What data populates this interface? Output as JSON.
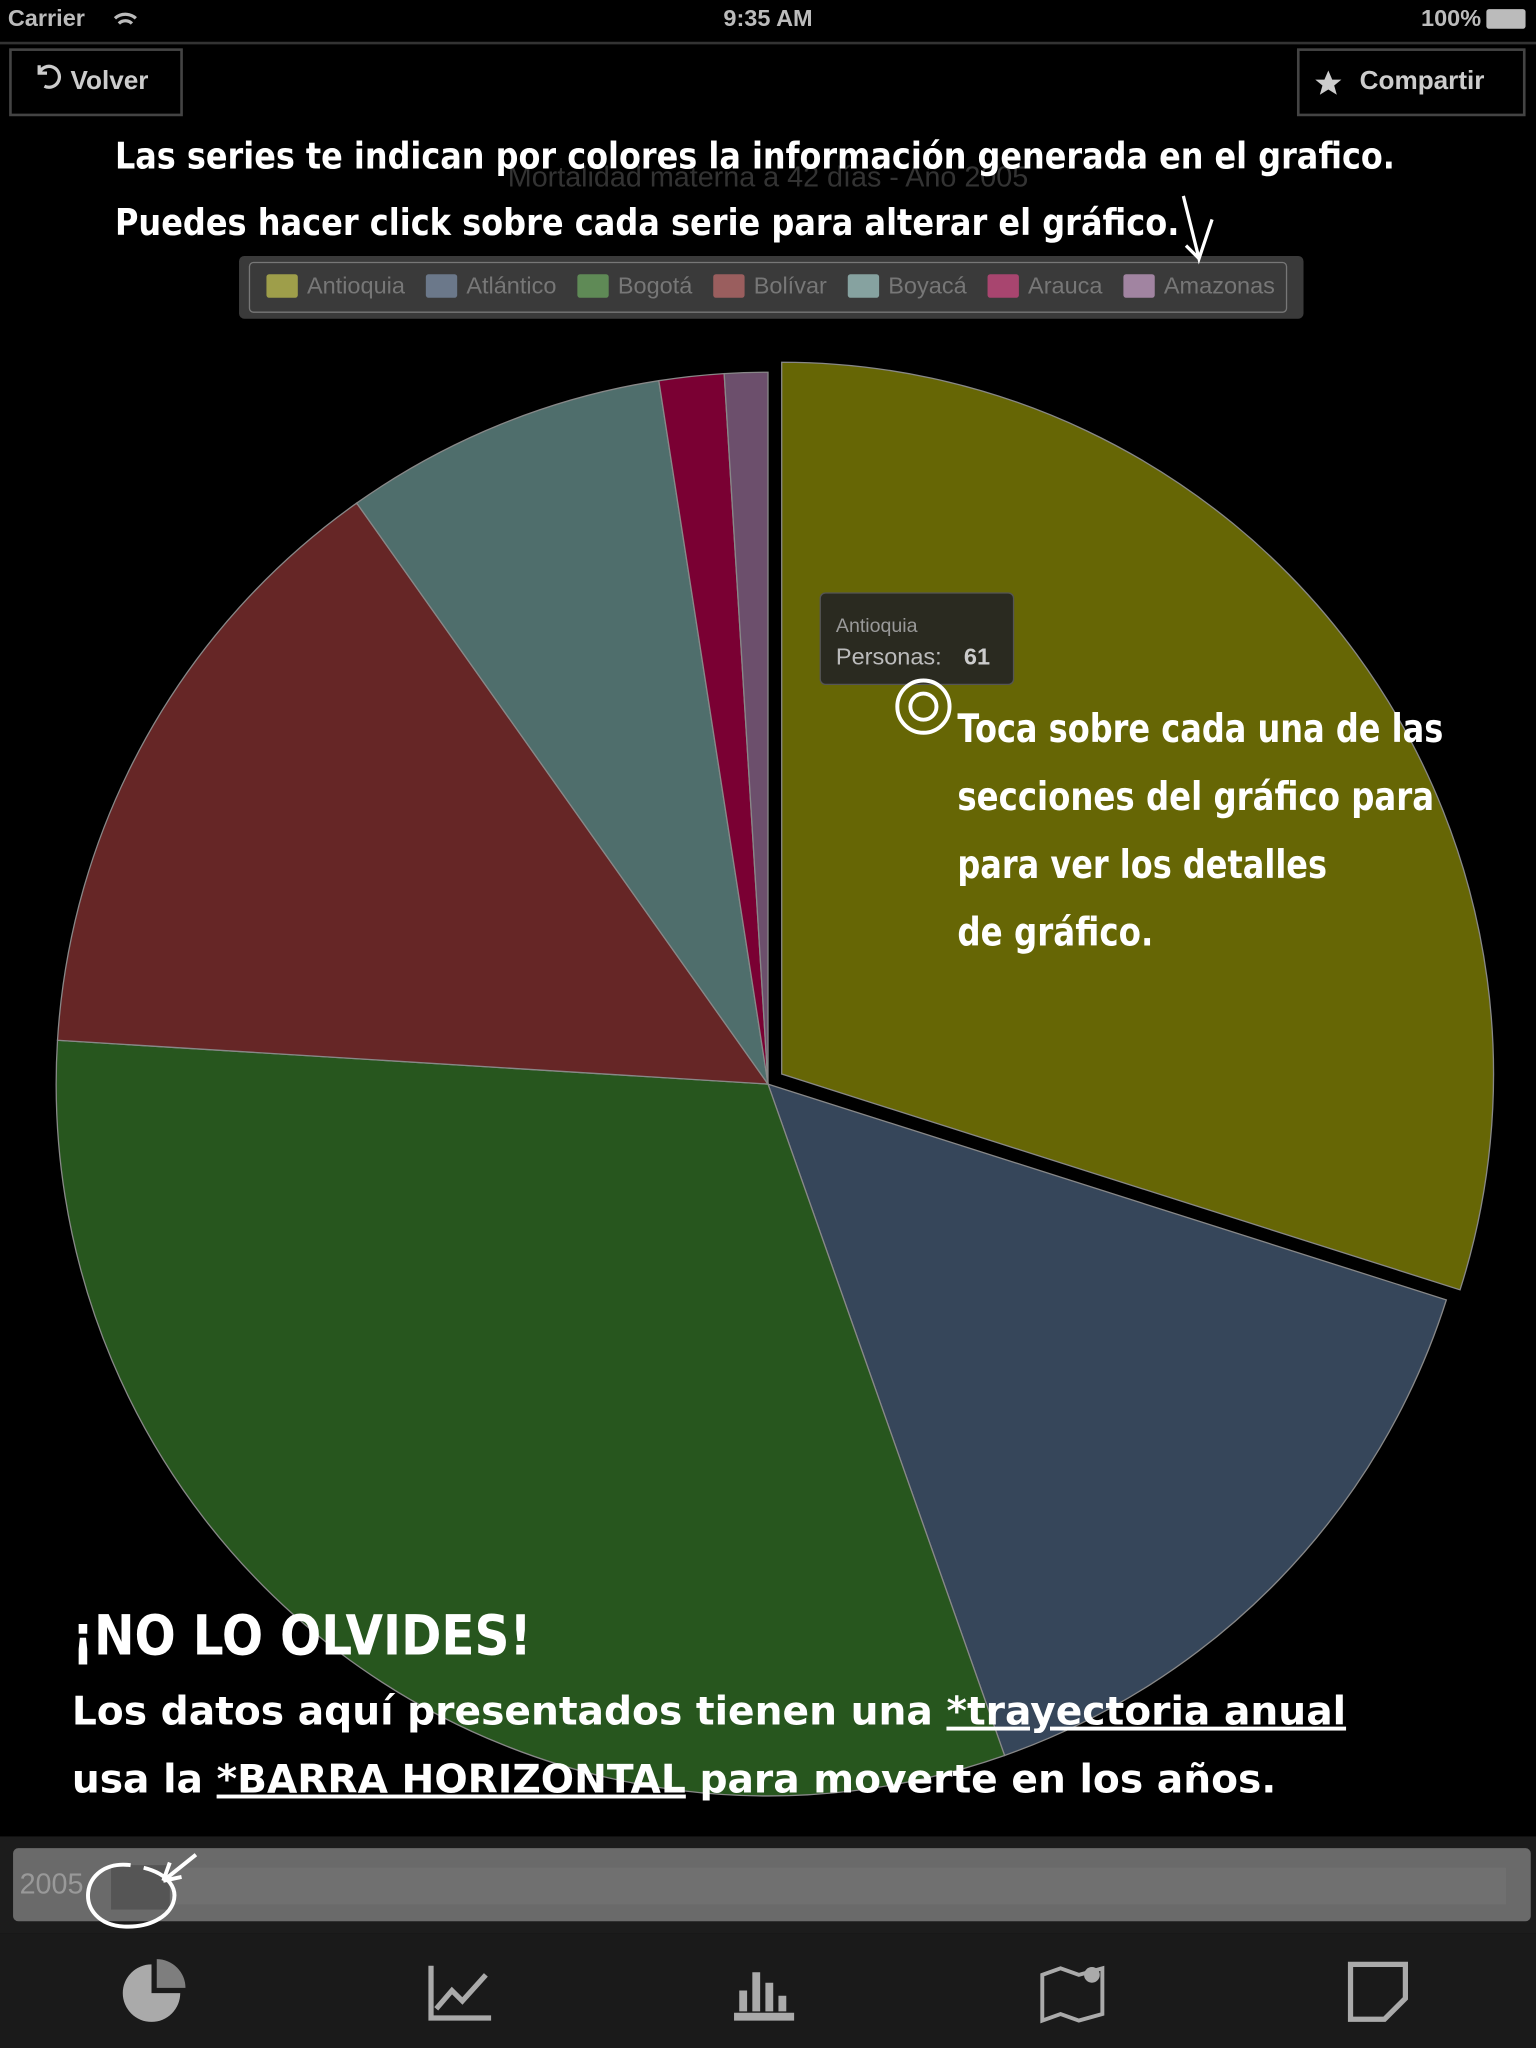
{
  "status_bar": {
    "carrier": "Carrier",
    "time": "9:35 AM",
    "battery": "100%"
  },
  "nav": {
    "back": "Volver",
    "share": "Compartir"
  },
  "chart_data": {
    "type": "pie",
    "title": "Mortalidad materna a 42 días - Año 2005",
    "categories": [
      "Antioquia",
      "Atlántico",
      "Bogotá",
      "Bolívar",
      "Boyacá",
      "Arauca",
      "Amazonas"
    ],
    "values": [
      61,
      30,
      64,
      29,
      15,
      3,
      2
    ],
    "colors": [
      "#666605",
      "#36465a",
      "#27561e",
      "#662626",
      "#4f6e6c",
      "#7a0033",
      "#6c4f6c"
    ],
    "legend_colors": [
      "#9e9e4a",
      "#6b788a",
      "#5f8a56",
      "#9a5e5e",
      "#86a2a0",
      "#a8456f",
      "#a184a1"
    ],
    "tooltip_label": "Personas:"
  },
  "annotations": {
    "legend_hint": [
      "Las series te indican por colores la información generada en el grafico.",
      "Puedes hacer click sobre cada serie para alterar el gráfico."
    ],
    "tap_hint": [
      "Toca sobre cada una de las",
      "secciones del gráfico para",
      "para ver  los detalles",
      "de gráfico."
    ],
    "reminder_title": "¡NO LO OLVIDES!",
    "reminder_line1": [
      "Los datos aquí presentados tienen una ",
      "*trayectoria anual"
    ],
    "reminder_line2": [
      "usa la ",
      "*BARRA HORIZONTAL",
      "  para moverte en los años."
    ]
  },
  "slider": {
    "year": "2005"
  }
}
